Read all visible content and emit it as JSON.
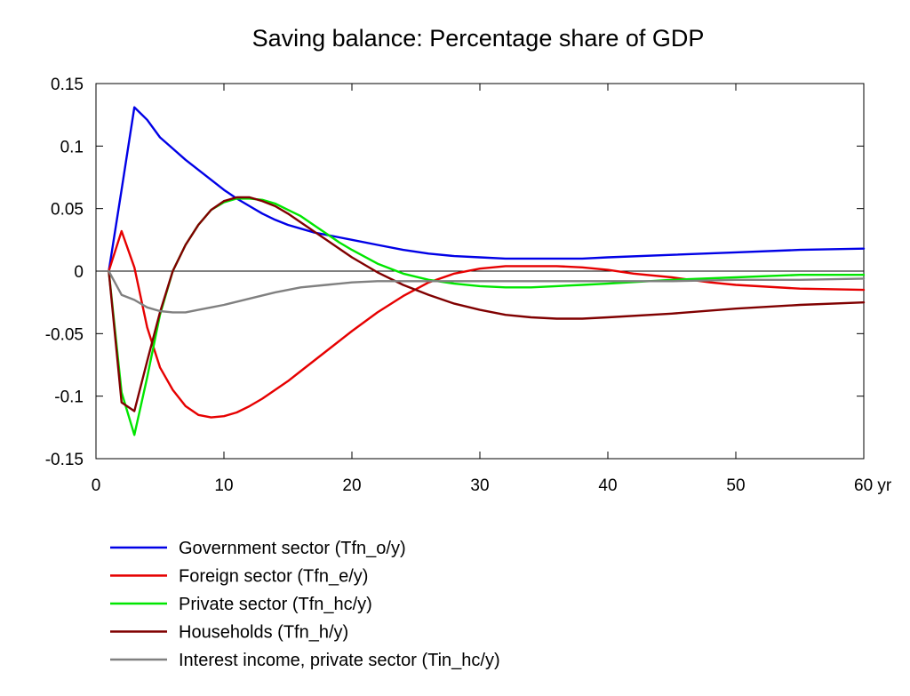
{
  "chart_data": {
    "type": "line",
    "title": "Saving balance: Percentage share of GDP",
    "xlabel": "",
    "ylabel": "",
    "xlim": [
      0,
      60
    ],
    "ylim": [
      -0.15,
      0.15
    ],
    "x_ticks": [
      0,
      10,
      20,
      30,
      40,
      50,
      60
    ],
    "x_tick_labels": [
      "0",
      "10",
      "20",
      "30",
      "40",
      "50",
      "60 yr"
    ],
    "y_ticks": [
      0.15,
      0.1,
      0.05,
      0,
      -0.05,
      -0.1,
      -0.15
    ],
    "y_tick_labels": [
      "0.15",
      "0.1",
      "0.05",
      "0",
      "-0.05",
      "-0.1",
      "-0.15"
    ],
    "grid": false,
    "zero_line": true,
    "legend_position": "bottom-left",
    "series": [
      {
        "name": "Government sector (Tfn_o/y)",
        "color": "#0000e6",
        "x": [
          1,
          2,
          3,
          4,
          5,
          6,
          7,
          8,
          9,
          10,
          11,
          12,
          13,
          14,
          15,
          16,
          17,
          18,
          19,
          20,
          22,
          24,
          26,
          28,
          30,
          32,
          34,
          36,
          38,
          40,
          45,
          50,
          55,
          60
        ],
        "y": [
          0.0,
          0.065,
          0.131,
          0.121,
          0.107,
          0.098,
          0.089,
          0.081,
          0.073,
          0.065,
          0.058,
          0.052,
          0.046,
          0.041,
          0.037,
          0.034,
          0.031,
          0.029,
          0.027,
          0.025,
          0.021,
          0.017,
          0.014,
          0.012,
          0.011,
          0.01,
          0.01,
          0.01,
          0.01,
          0.011,
          0.013,
          0.015,
          0.017,
          0.018
        ]
      },
      {
        "name": "Foreign sector (Tfn_e/y)",
        "color": "#e60000",
        "x": [
          1,
          2,
          3,
          4,
          5,
          6,
          7,
          8,
          9,
          10,
          11,
          12,
          13,
          14,
          15,
          16,
          18,
          20,
          22,
          24,
          26,
          28,
          30,
          32,
          34,
          36,
          38,
          40,
          42,
          45,
          48,
          50,
          55,
          60
        ],
        "y": [
          0.0,
          0.032,
          0.003,
          -0.045,
          -0.077,
          -0.095,
          -0.108,
          -0.115,
          -0.117,
          -0.116,
          -0.113,
          -0.108,
          -0.102,
          -0.095,
          -0.088,
          -0.08,
          -0.064,
          -0.048,
          -0.033,
          -0.02,
          -0.009,
          -0.002,
          0.002,
          0.004,
          0.004,
          0.004,
          0.003,
          0.001,
          -0.002,
          -0.005,
          -0.009,
          -0.011,
          -0.014,
          -0.015
        ]
      },
      {
        "name": "Private sector (Tfn_hc/y)",
        "color": "#00e600",
        "x": [
          1,
          2,
          3,
          4,
          5,
          6,
          7,
          8,
          9,
          10,
          11,
          12,
          13,
          14,
          15,
          16,
          17,
          18,
          19,
          20,
          22,
          24,
          26,
          28,
          30,
          32,
          34,
          36,
          38,
          40,
          45,
          50,
          55,
          60
        ],
        "y": [
          0.0,
          -0.097,
          -0.131,
          -0.085,
          -0.035,
          0.0,
          0.021,
          0.037,
          0.049,
          0.055,
          0.058,
          0.058,
          0.057,
          0.054,
          0.049,
          0.044,
          0.037,
          0.03,
          0.023,
          0.017,
          0.006,
          -0.002,
          -0.007,
          -0.01,
          -0.012,
          -0.013,
          -0.013,
          -0.012,
          -0.011,
          -0.01,
          -0.007,
          -0.005,
          -0.003,
          -0.003
        ]
      },
      {
        "name": "Households (Tfn_h/y)",
        "color": "#800000",
        "x": [
          1,
          2,
          3,
          4,
          5,
          6,
          7,
          8,
          9,
          10,
          11,
          12,
          13,
          14,
          15,
          16,
          17,
          18,
          20,
          22,
          24,
          26,
          28,
          30,
          32,
          34,
          36,
          38,
          40,
          45,
          50,
          55,
          60
        ],
        "y": [
          0.0,
          -0.105,
          -0.112,
          -0.072,
          -0.033,
          0.0,
          0.021,
          0.037,
          0.049,
          0.056,
          0.059,
          0.059,
          0.056,
          0.052,
          0.046,
          0.039,
          0.032,
          0.025,
          0.011,
          -0.001,
          -0.011,
          -0.019,
          -0.026,
          -0.031,
          -0.035,
          -0.037,
          -0.038,
          -0.038,
          -0.037,
          -0.034,
          -0.03,
          -0.027,
          -0.025
        ]
      },
      {
        "name": "Interest income, private sector (Tin_hc/y)",
        "color": "#808080",
        "x": [
          1,
          2,
          3,
          4,
          5,
          6,
          7,
          8,
          9,
          10,
          12,
          14,
          16,
          18,
          20,
          22,
          24,
          26,
          28,
          30,
          35,
          40,
          45,
          50,
          55,
          60
        ],
        "y": [
          0.0,
          -0.019,
          -0.023,
          -0.029,
          -0.032,
          -0.033,
          -0.033,
          -0.031,
          -0.029,
          -0.027,
          -0.022,
          -0.017,
          -0.013,
          -0.011,
          -0.009,
          -0.008,
          -0.008,
          -0.008,
          -0.008,
          -0.008,
          -0.008,
          -0.008,
          -0.008,
          -0.007,
          -0.007,
          -0.006
        ]
      }
    ]
  }
}
